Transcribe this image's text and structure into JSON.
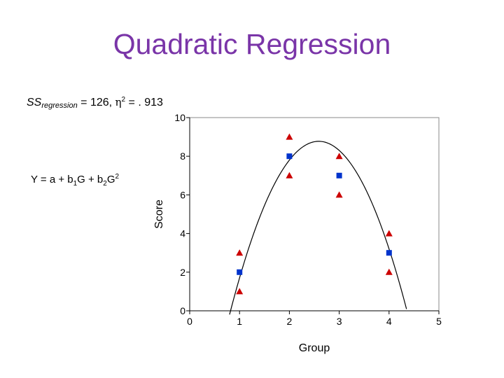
{
  "slide": {
    "title": "Quadratic Regression",
    "ss_prefix": "SS",
    "ss_subscript": "regression",
    "ss_rest": " = 126, ",
    "eta_symbol": "η",
    "eta_power": "2",
    "eta_value": " = . 913",
    "equation": {
      "lhs": "Y = a + b",
      "b1_sub": "1",
      "mid": "G + b",
      "b2_sub": "2",
      "var": "G",
      "power": "2"
    }
  },
  "colors": {
    "title": "#7a35a8",
    "means": "#0033cc",
    "observations": "#cc0000",
    "curve": "#000000"
  },
  "chart_data": {
    "type": "scatter",
    "xlabel": "Group",
    "ylabel": "Score",
    "xlim": [
      0,
      5
    ],
    "ylim": [
      0,
      10
    ],
    "xticks": [
      "0",
      "1",
      "2",
      "3",
      "4",
      "5"
    ],
    "yticks": [
      "0",
      "2",
      "4",
      "6",
      "8",
      "10"
    ],
    "grid": false,
    "legend": "none",
    "series": [
      {
        "marker": "triangle",
        "color": "#cc0000",
        "points": [
          [
            1,
            3
          ],
          [
            1,
            1
          ],
          [
            2,
            9
          ],
          [
            2,
            7
          ],
          [
            3,
            8
          ],
          [
            3,
            6
          ],
          [
            4,
            4
          ],
          [
            4,
            2
          ]
        ]
      },
      {
        "marker": "square",
        "color": "#0033cc",
        "points": [
          [
            1,
            2
          ],
          [
            2,
            8
          ],
          [
            3,
            7
          ],
          [
            4,
            3
          ]
        ]
      }
    ],
    "fit_curve": {
      "type": "quadratic",
      "a": -10,
      "b1": 14.5,
      "b2": -2.8,
      "x_range": [
        0.8,
        4.35
      ]
    }
  }
}
